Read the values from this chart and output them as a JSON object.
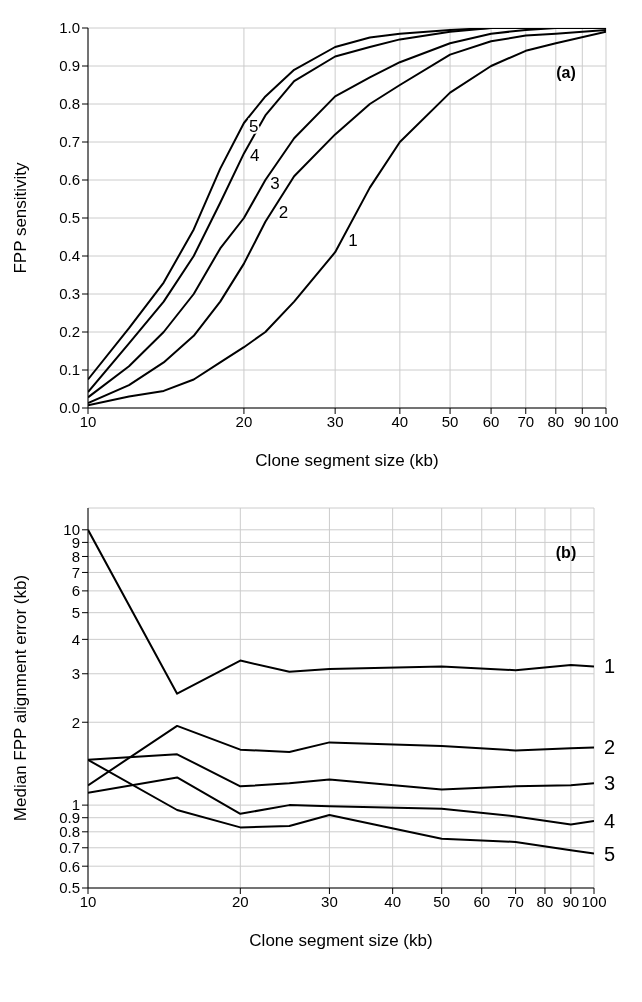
{
  "chart_data": [
    {
      "type": "line",
      "title": "(a)",
      "xlabel": "Clone segment size (kb)",
      "ylabel": "FPP sensitivity",
      "log": "x",
      "grid": true,
      "legend": false,
      "x": [
        10,
        12,
        14,
        16,
        18,
        20,
        22,
        25,
        30,
        35,
        40,
        50,
        60,
        70,
        80,
        100
      ],
      "xlim": [
        10,
        100
      ],
      "xticks": [
        10,
        20,
        30,
        40,
        50,
        60,
        70,
        80,
        90,
        100
      ],
      "ylim": [
        0,
        1
      ],
      "yticks": [
        {
          "value": 0,
          "label": "0.0"
        },
        0.1,
        0.2,
        0.3,
        0.4,
        0.5,
        0.6,
        0.7,
        0.8,
        0.9,
        {
          "value": 1,
          "label": "1.0"
        }
      ],
      "series": [
        {
          "name": "1",
          "color": "#000000",
          "values": [
            0.007,
            0.03,
            0.045,
            0.075,
            0.12,
            0.16,
            0.2,
            0.28,
            0.41,
            0.58,
            0.7,
            0.83,
            0.9,
            0.94,
            0.96,
            0.99
          ]
        },
        {
          "name": "2",
          "color": "#000000",
          "values": [
            0.013,
            0.06,
            0.12,
            0.19,
            0.28,
            0.38,
            0.49,
            0.61,
            0.72,
            0.8,
            0.85,
            0.93,
            0.965,
            0.98,
            0.985,
            0.995
          ]
        },
        {
          "name": "3",
          "color": "#000000",
          "values": [
            0.028,
            0.11,
            0.2,
            0.3,
            0.42,
            0.5,
            0.6,
            0.71,
            0.82,
            0.87,
            0.91,
            0.96,
            0.985,
            0.995,
            1.0,
            1.0
          ]
        },
        {
          "name": "4",
          "color": "#000000",
          "values": [
            0.042,
            0.17,
            0.28,
            0.4,
            0.54,
            0.67,
            0.77,
            0.86,
            0.925,
            0.95,
            0.97,
            0.99,
            1.0,
            1.0,
            1.0,
            1.0
          ]
        },
        {
          "name": "5",
          "color": "#000000",
          "values": [
            0.075,
            0.21,
            0.33,
            0.47,
            0.63,
            0.75,
            0.82,
            0.89,
            0.95,
            0.975,
            0.985,
            0.995,
            1.0,
            1.0,
            1.0,
            1.0
          ]
        }
      ]
    },
    {
      "type": "line",
      "title": "(b)",
      "xlabel": "Clone segment size (kb)",
      "ylabel": "Median FPP alignment error (kb)",
      "log": "xy",
      "grid": true,
      "legend": false,
      "x": [
        10,
        15,
        20,
        25,
        30,
        50,
        70,
        90,
        100
      ],
      "xlim": [
        10,
        100
      ],
      "xticks": [
        10,
        20,
        30,
        40,
        50,
        60,
        70,
        80,
        90,
        100
      ],
      "ylim": [
        0.5,
        12
      ],
      "yticks": [
        0.5,
        0.6,
        0.7,
        0.8,
        0.9,
        1,
        2,
        3,
        4,
        5,
        6,
        7,
        8,
        9,
        10
      ],
      "series": [
        {
          "name": "1",
          "color": "#000000",
          "values": [
            10,
            2.54,
            3.35,
            3.05,
            3.12,
            3.19,
            3.09,
            3.23,
            3.19
          ]
        },
        {
          "name": "2",
          "color": "#000000",
          "values": [
            1.18,
            1.94,
            1.59,
            1.56,
            1.69,
            1.64,
            1.58,
            1.61,
            1.62
          ]
        },
        {
          "name": "3",
          "color": "#000000",
          "values": [
            1.46,
            1.53,
            1.17,
            1.2,
            1.24,
            1.14,
            1.17,
            1.18,
            1.2
          ]
        },
        {
          "name": "4",
          "color": "#000000",
          "values": [
            1.11,
            1.26,
            0.93,
            1.0,
            0.99,
            0.97,
            0.91,
            0.85,
            0.875
          ]
        },
        {
          "name": "5",
          "color": "#000000",
          "values": [
            1.46,
            0.96,
            0.83,
            0.84,
            0.92,
            0.755,
            0.735,
            0.686,
            0.667
          ]
        }
      ]
    }
  ]
}
